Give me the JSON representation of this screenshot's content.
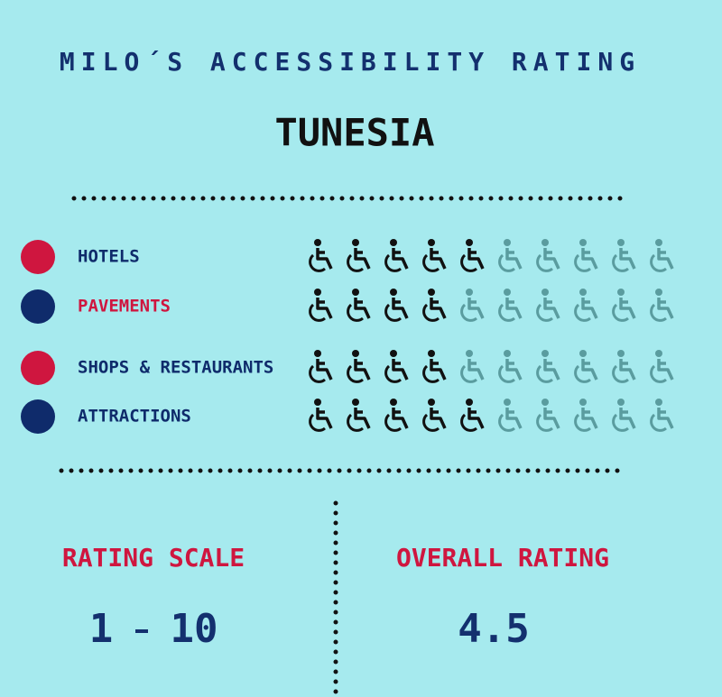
{
  "header": {
    "title": "MILO´S ACCESSIBILITY RATING",
    "country": "TUNESIA"
  },
  "ratings": [
    {
      "label": "HOTELS",
      "value": 5
    },
    {
      "label": "PAVEMENTS",
      "value": 4
    },
    {
      "label": "SHOPS & RESTAURANTS",
      "value": 4
    },
    {
      "label": "ATTRACTIONS",
      "value": 5
    }
  ],
  "rating_scale": {
    "title": "RATING SCALE",
    "min": 1,
    "max": 10
  },
  "overall_rating": {
    "title": "OVERALL RATING",
    "value": 4.5
  }
}
